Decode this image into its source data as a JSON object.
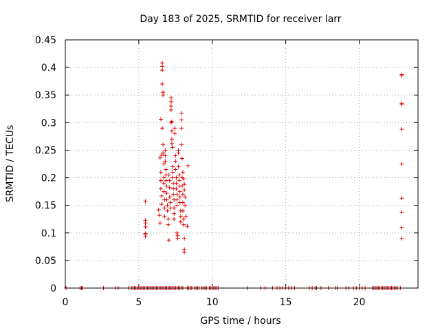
{
  "chart_data": {
    "type": "scatter",
    "title": "Day 183 of 2025, SRMTID for receiver larr",
    "xlabel": "GPS time / hours",
    "ylabel": "SRMTID / TECUs",
    "xlim": [
      0,
      24
    ],
    "ylim": [
      0,
      0.45
    ],
    "xticks": [
      "0",
      "5",
      "10",
      "15",
      "20"
    ],
    "yticks": [
      "0",
      "0.05",
      "0.1",
      "0.15",
      "0.2",
      "0.25",
      "0.3",
      "0.35",
      "0.4",
      "0.45"
    ],
    "grid": true,
    "marker": "+",
    "color": "#dd0000",
    "points": [
      [
        0.05,
        0
      ],
      [
        1.0,
        0
      ],
      [
        1.1,
        0
      ],
      [
        1.15,
        0
      ],
      [
        2.6,
        0
      ],
      [
        3.4,
        0
      ],
      [
        3.6,
        0
      ],
      [
        4.3,
        0
      ],
      [
        4.5,
        0
      ],
      [
        4.6,
        0
      ],
      [
        4.7,
        0
      ],
      [
        4.8,
        0
      ],
      [
        4.9,
        0
      ],
      [
        5.0,
        0
      ],
      [
        5.1,
        0
      ],
      [
        5.2,
        0
      ],
      [
        5.3,
        0
      ],
      [
        5.4,
        0
      ],
      [
        5.5,
        0
      ],
      [
        5.6,
        0
      ],
      [
        5.7,
        0
      ],
      [
        5.8,
        0
      ],
      [
        5.9,
        0
      ],
      [
        6.0,
        0
      ],
      [
        6.1,
        0
      ],
      [
        6.2,
        0
      ],
      [
        6.3,
        0
      ],
      [
        6.4,
        0
      ],
      [
        6.5,
        0
      ],
      [
        6.6,
        0
      ],
      [
        6.7,
        0
      ],
      [
        6.8,
        0
      ],
      [
        6.9,
        0
      ],
      [
        7.0,
        0
      ],
      [
        7.1,
        0
      ],
      [
        7.2,
        0
      ],
      [
        7.3,
        0
      ],
      [
        7.4,
        0
      ],
      [
        7.5,
        0
      ],
      [
        7.6,
        0
      ],
      [
        7.7,
        0
      ],
      [
        7.8,
        0
      ],
      [
        7.9,
        0
      ],
      [
        8.0,
        0
      ],
      [
        8.3,
        0
      ],
      [
        8.4,
        0
      ],
      [
        8.5,
        0
      ],
      [
        8.6,
        0
      ],
      [
        8.8,
        0
      ],
      [
        8.9,
        0
      ],
      [
        9.0,
        0
      ],
      [
        9.1,
        0
      ],
      [
        9.3,
        0
      ],
      [
        9.4,
        0
      ],
      [
        9.5,
        0
      ],
      [
        9.6,
        0
      ],
      [
        9.8,
        0
      ],
      [
        9.9,
        0
      ],
      [
        10.0,
        0
      ],
      [
        10.1,
        0
      ],
      [
        10.2,
        0
      ],
      [
        10.3,
        0
      ],
      [
        10.4,
        0
      ],
      [
        12.4,
        0
      ],
      [
        13.3,
        0
      ],
      [
        13.6,
        0
      ],
      [
        14.1,
        0
      ],
      [
        14.4,
        0
      ],
      [
        14.6,
        0
      ],
      [
        14.8,
        0
      ],
      [
        15.0,
        0
      ],
      [
        15.2,
        0
      ],
      [
        15.4,
        0
      ],
      [
        15.6,
        0
      ],
      [
        16.6,
        0
      ],
      [
        16.8,
        0
      ],
      [
        17.0,
        0
      ],
      [
        17.1,
        0
      ],
      [
        17.4,
        0
      ],
      [
        17.9,
        0
      ],
      [
        18.4,
        0
      ],
      [
        18.5,
        0
      ],
      [
        19.1,
        0
      ],
      [
        19.3,
        0
      ],
      [
        19.6,
        0
      ],
      [
        19.8,
        0
      ],
      [
        20.0,
        0
      ],
      [
        20.2,
        0
      ],
      [
        20.4,
        0
      ],
      [
        20.9,
        0
      ],
      [
        21.0,
        0
      ],
      [
        21.1,
        0
      ],
      [
        21.2,
        0
      ],
      [
        21.3,
        0
      ],
      [
        21.4,
        0
      ],
      [
        21.5,
        0
      ],
      [
        21.6,
        0
      ],
      [
        21.7,
        0
      ],
      [
        21.8,
        0
      ],
      [
        21.9,
        0
      ],
      [
        22.0,
        0
      ],
      [
        22.1,
        0
      ],
      [
        22.2,
        0
      ],
      [
        22.3,
        0
      ],
      [
        22.4,
        0
      ],
      [
        22.5,
        0
      ],
      [
        22.6,
        0
      ],
      [
        22.8,
        0
      ],
      [
        5.45,
        0.157
      ],
      [
        5.45,
        0.123
      ],
      [
        5.45,
        0.118
      ],
      [
        5.45,
        0.111
      ],
      [
        5.45,
        0.099
      ],
      [
        5.45,
        0.097
      ],
      [
        5.45,
        0.094
      ],
      [
        6.35,
        0.142
      ],
      [
        6.4,
        0.132
      ],
      [
        6.45,
        0.118
      ],
      [
        6.45,
        0.236
      ],
      [
        6.5,
        0.21
      ],
      [
        6.5,
        0.195
      ],
      [
        6.5,
        0.18
      ],
      [
        6.55,
        0.167
      ],
      [
        6.55,
        0.152
      ],
      [
        6.5,
        0.306
      ],
      [
        6.55,
        0.241
      ],
      [
        6.6,
        0.408
      ],
      [
        6.6,
        0.402
      ],
      [
        6.6,
        0.395
      ],
      [
        6.6,
        0.37
      ],
      [
        6.65,
        0.355
      ],
      [
        6.65,
        0.35
      ],
      [
        6.6,
        0.29
      ],
      [
        6.65,
        0.26
      ],
      [
        6.65,
        0.245
      ],
      [
        6.7,
        0.225
      ],
      [
        6.7,
        0.2
      ],
      [
        6.7,
        0.19
      ],
      [
        6.7,
        0.175
      ],
      [
        6.75,
        0.16
      ],
      [
        6.75,
        0.145
      ],
      [
        6.75,
        0.13
      ],
      [
        6.8,
        0.25
      ],
      [
        6.8,
        0.24
      ],
      [
        6.8,
        0.23
      ],
      [
        6.85,
        0.215
      ],
      [
        6.85,
        0.205
      ],
      [
        6.85,
        0.195
      ],
      [
        6.9,
        0.185
      ],
      [
        6.9,
        0.172
      ],
      [
        6.9,
        0.16
      ],
      [
        6.95,
        0.15
      ],
      [
        6.95,
        0.14
      ],
      [
        7.0,
        0.125
      ],
      [
        7.0,
        0.115
      ],
      [
        7.05,
        0.087
      ],
      [
        7.05,
        0.205
      ],
      [
        7.1,
        0.195
      ],
      [
        7.1,
        0.182
      ],
      [
        7.1,
        0.165
      ],
      [
        7.15,
        0.155
      ],
      [
        7.15,
        0.145
      ],
      [
        7.2,
        0.345
      ],
      [
        7.2,
        0.338
      ],
      [
        7.2,
        0.33
      ],
      [
        7.2,
        0.323
      ],
      [
        7.2,
        0.3
      ],
      [
        7.25,
        0.302
      ],
      [
        7.25,
        0.285
      ],
      [
        7.25,
        0.27
      ],
      [
        7.25,
        0.262
      ],
      [
        7.3,
        0.255
      ],
      [
        7.3,
        0.22
      ],
      [
        7.3,
        0.21
      ],
      [
        7.3,
        0.2
      ],
      [
        7.35,
        0.19
      ],
      [
        7.35,
        0.18
      ],
      [
        7.35,
        0.17
      ],
      [
        7.4,
        0.16
      ],
      [
        7.4,
        0.145
      ],
      [
        7.4,
        0.135
      ],
      [
        7.4,
        0.125
      ],
      [
        7.45,
        0.29
      ],
      [
        7.45,
        0.28
      ],
      [
        7.5,
        0.24
      ],
      [
        7.5,
        0.23
      ],
      [
        7.5,
        0.215
      ],
      [
        7.55,
        0.2
      ],
      [
        7.55,
        0.19
      ],
      [
        7.55,
        0.18
      ],
      [
        7.6,
        0.17
      ],
      [
        7.6,
        0.16
      ],
      [
        7.6,
        0.15
      ],
      [
        7.6,
        0.1
      ],
      [
        7.65,
        0.095
      ],
      [
        7.65,
        0.09
      ],
      [
        7.7,
        0.25
      ],
      [
        7.7,
        0.245
      ],
      [
        7.7,
        0.22
      ],
      [
        7.75,
        0.205
      ],
      [
        7.75,
        0.195
      ],
      [
        7.75,
        0.185
      ],
      [
        7.8,
        0.175
      ],
      [
        7.8,
        0.165
      ],
      [
        7.8,
        0.155
      ],
      [
        7.85,
        0.14
      ],
      [
        7.85,
        0.13
      ],
      [
        7.85,
        0.12
      ],
      [
        7.9,
        0.317
      ],
      [
        7.9,
        0.305
      ],
      [
        7.9,
        0.29
      ],
      [
        7.9,
        0.26
      ],
      [
        7.95,
        0.235
      ],
      [
        7.95,
        0.2
      ],
      [
        7.95,
        0.185
      ],
      [
        8.0,
        0.17
      ],
      [
        8.0,
        0.155
      ],
      [
        8.0,
        0.14
      ],
      [
        8.05,
        0.125
      ],
      [
        8.05,
        0.115
      ],
      [
        8.1,
        0.07
      ],
      [
        8.1,
        0.065
      ],
      [
        8.0,
        0.21
      ],
      [
        8.05,
        0.198
      ],
      [
        8.1,
        0.188
      ],
      [
        8.1,
        0.178
      ],
      [
        8.15,
        0.165
      ],
      [
        8.15,
        0.15
      ],
      [
        8.2,
        0.13
      ],
      [
        8.3,
        0.112
      ],
      [
        8.35,
        0.222
      ],
      [
        8.1,
        0.09
      ],
      [
        22.9,
        0.387
      ],
      [
        22.9,
        0.385
      ],
      [
        22.9,
        0.335
      ],
      [
        22.9,
        0.333
      ],
      [
        22.9,
        0.288
      ],
      [
        22.9,
        0.225
      ],
      [
        22.9,
        0.163
      ],
      [
        22.9,
        0.137
      ],
      [
        22.9,
        0.11
      ],
      [
        22.9,
        0.09
      ]
    ]
  }
}
